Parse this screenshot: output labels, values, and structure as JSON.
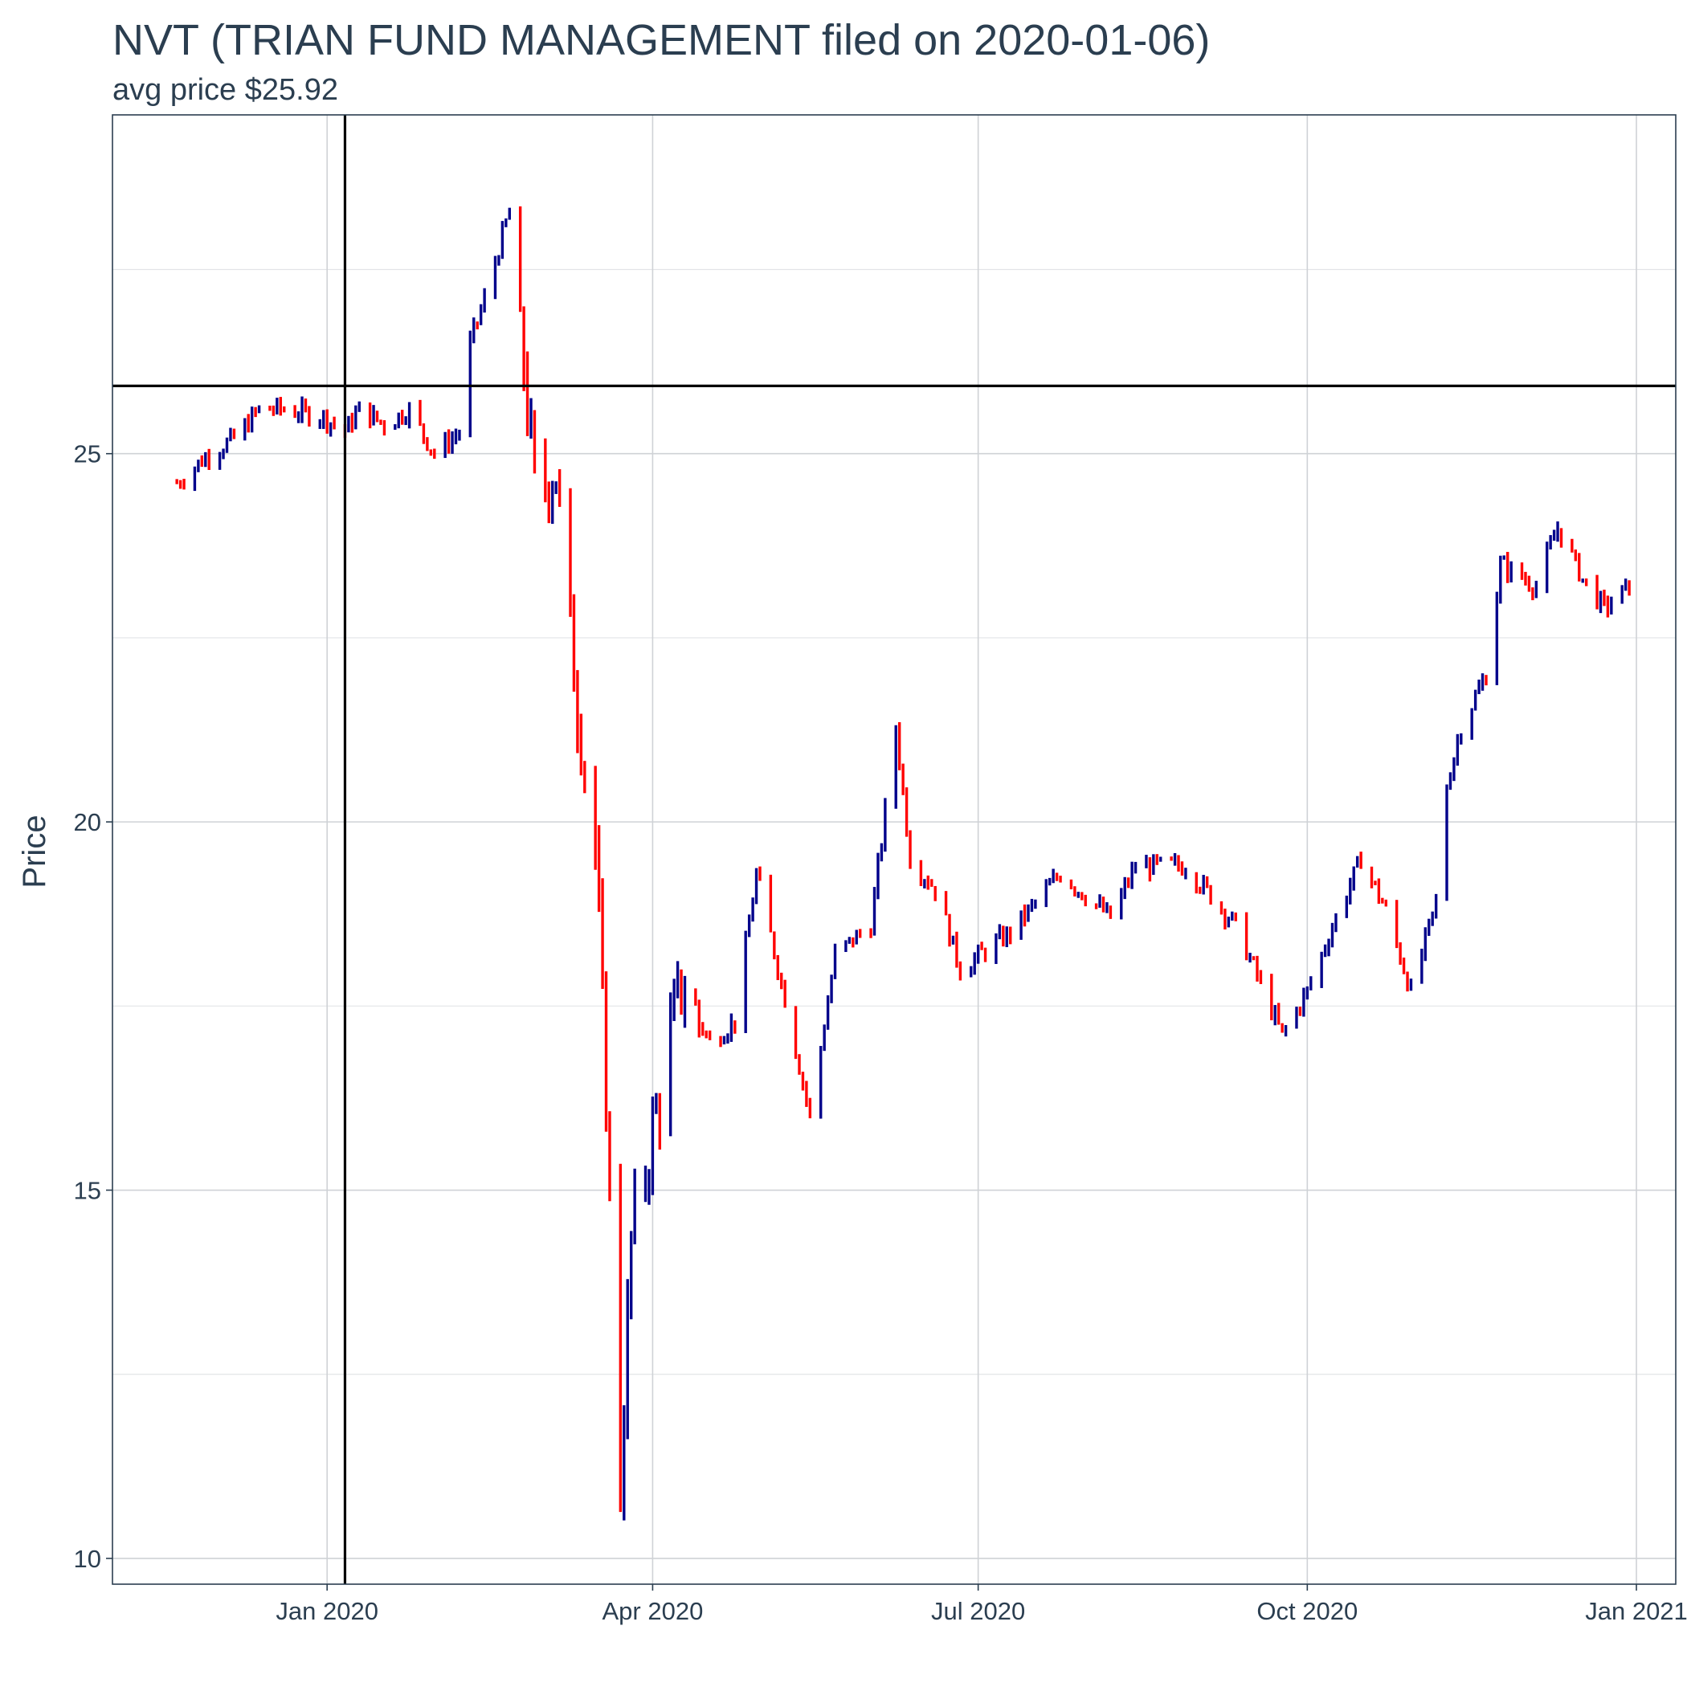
{
  "chart_data": {
    "type": "ohlc",
    "title": "NVT (TRIAN FUND MANAGEMENT filed on 2020-01-06)",
    "subtitle": "avg price $25.92",
    "ylabel": "Price",
    "xlabel": "",
    "ylim": [
      9.65,
      29.6
    ],
    "xlim": [
      "2019-11-02",
      "2021-01-12"
    ],
    "y_ticks": [
      10,
      15,
      20,
      25
    ],
    "x_ticks": [
      {
        "date": "2020-01-01",
        "label": "Jan 2020"
      },
      {
        "date": "2020-04-01",
        "label": "Apr 2020"
      },
      {
        "date": "2020-07-01",
        "label": "Jul 2020"
      },
      {
        "date": "2020-10-01",
        "label": "Oct 2020"
      },
      {
        "date": "2021-01-01",
        "label": "Jan 2021"
      }
    ],
    "grid": true,
    "legend": "none",
    "reference_lines": {
      "vertical_date": "2020-01-06",
      "horizontal_price": 25.92
    },
    "colors": {
      "up": "#00008b",
      "down": "#ff0000",
      "reference": "#000000",
      "text": "#2b3e50",
      "panel_border": "#2b3e50"
    },
    "anchor_closes": [
      [
        "2019-11-20",
        24.6
      ],
      [
        "2019-11-29",
        25.0
      ],
      [
        "2019-12-06",
        25.2
      ],
      [
        "2019-12-13",
        25.6
      ],
      [
        "2019-12-20",
        25.6
      ],
      [
        "2019-12-31",
        25.5
      ],
      [
        "2020-01-06",
        25.3
      ],
      [
        "2020-01-10",
        25.6
      ],
      [
        "2020-01-17",
        25.4
      ],
      [
        "2020-01-24",
        25.6
      ],
      [
        "2020-01-31",
        25.0
      ],
      [
        "2020-02-07",
        25.3
      ],
      [
        "2020-02-10",
        26.5
      ],
      [
        "2020-02-14",
        27.1
      ],
      [
        "2020-02-21",
        28.3
      ],
      [
        "2020-02-24",
        26.8
      ],
      [
        "2020-02-28",
        24.5
      ],
      [
        "2020-03-05",
        24.8
      ],
      [
        "2020-03-09",
        22.5
      ],
      [
        "2020-03-16",
        19.6
      ],
      [
        "2020-03-19",
        16.3
      ],
      [
        "2020-03-23",
        11.0
      ],
      [
        "2020-03-26",
        14.3
      ],
      [
        "2020-04-01",
        15.8
      ],
      [
        "2020-04-09",
        17.8
      ],
      [
        "2020-04-17",
        17.0
      ],
      [
        "2020-04-24",
        17.3
      ],
      [
        "2020-04-30",
        19.3
      ],
      [
        "2020-05-08",
        17.6
      ],
      [
        "2020-05-15",
        16.0
      ],
      [
        "2020-05-22",
        18.2
      ],
      [
        "2020-06-01",
        18.6
      ],
      [
        "2020-06-08",
        21.3
      ],
      [
        "2020-06-12",
        19.5
      ],
      [
        "2020-06-19",
        19.1
      ],
      [
        "2020-06-26",
        18.0
      ],
      [
        "2020-07-10",
        18.5
      ],
      [
        "2020-07-24",
        19.3
      ],
      [
        "2020-08-07",
        18.7
      ],
      [
        "2020-08-14",
        19.4
      ],
      [
        "2020-08-28",
        19.4
      ],
      [
        "2020-09-11",
        18.6
      ],
      [
        "2020-09-24",
        17.1
      ],
      [
        "2020-10-01",
        17.7
      ],
      [
        "2020-10-09",
        18.7
      ],
      [
        "2020-10-16",
        19.5
      ],
      [
        "2020-10-23",
        18.8
      ],
      [
        "2020-10-30",
        17.7
      ],
      [
        "2020-11-06",
        18.9
      ],
      [
        "2020-11-09",
        20.5
      ],
      [
        "2020-11-13",
        21.3
      ],
      [
        "2020-11-20",
        22.0
      ],
      [
        "2020-11-24",
        23.5
      ],
      [
        "2020-12-04",
        23.2
      ],
      [
        "2020-12-10",
        24.0
      ],
      [
        "2020-12-17",
        23.3
      ],
      [
        "2020-12-23",
        22.9
      ],
      [
        "2020-12-30",
        23.2
      ]
    ]
  }
}
